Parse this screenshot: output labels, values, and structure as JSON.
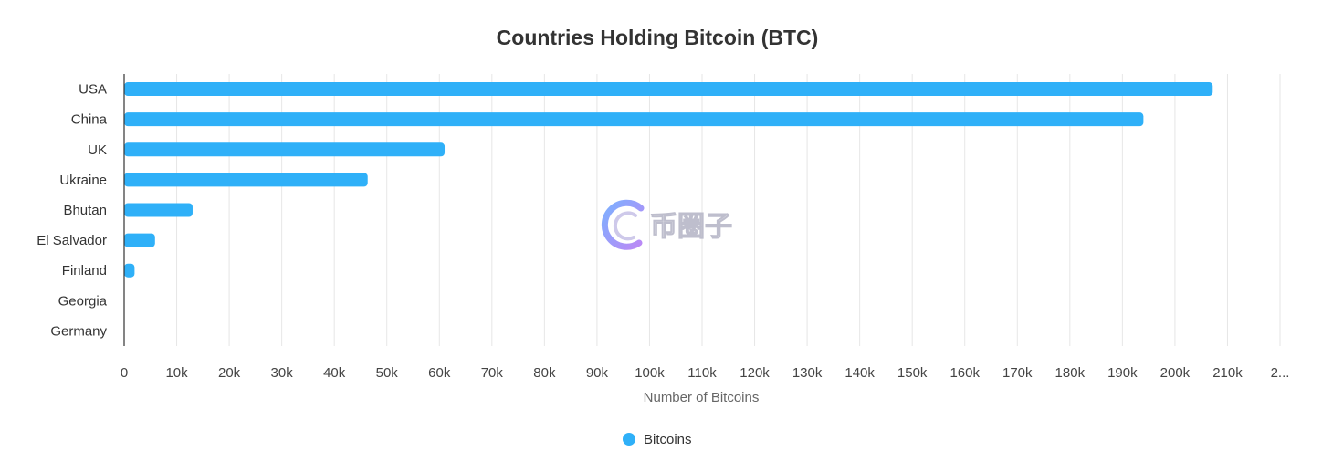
{
  "chart_data": {
    "type": "bar",
    "orientation": "horizontal",
    "title": "Countries Holding Bitcoin (BTC)",
    "xlabel": "Number of Bitcoins",
    "ylabel": "",
    "categories": [
      "USA",
      "China",
      "UK",
      "Ukraine",
      "Bhutan",
      "El Salvador",
      "Finland",
      "Georgia",
      "Germany"
    ],
    "series": [
      {
        "name": "Bitcoins",
        "color": "#2fb0f8",
        "values": [
          207189,
          194000,
          61000,
          46351,
          13029,
          5875,
          1981,
          66,
          0
        ]
      }
    ],
    "xlim": [
      0,
      220000
    ],
    "xticks": [
      "0",
      "10k",
      "20k",
      "30k",
      "40k",
      "50k",
      "60k",
      "70k",
      "80k",
      "90k",
      "100k",
      "110k",
      "120k",
      "130k",
      "140k",
      "150k",
      "160k",
      "170k",
      "180k",
      "190k",
      "200k",
      "210k",
      "2..."
    ],
    "grid": true,
    "legend": "bottom-center"
  },
  "watermark": {
    "text": "币圈子",
    "icon": "bizhizi-logo-icon",
    "colors": [
      "#6fa8ff",
      "#b57cf5"
    ]
  }
}
